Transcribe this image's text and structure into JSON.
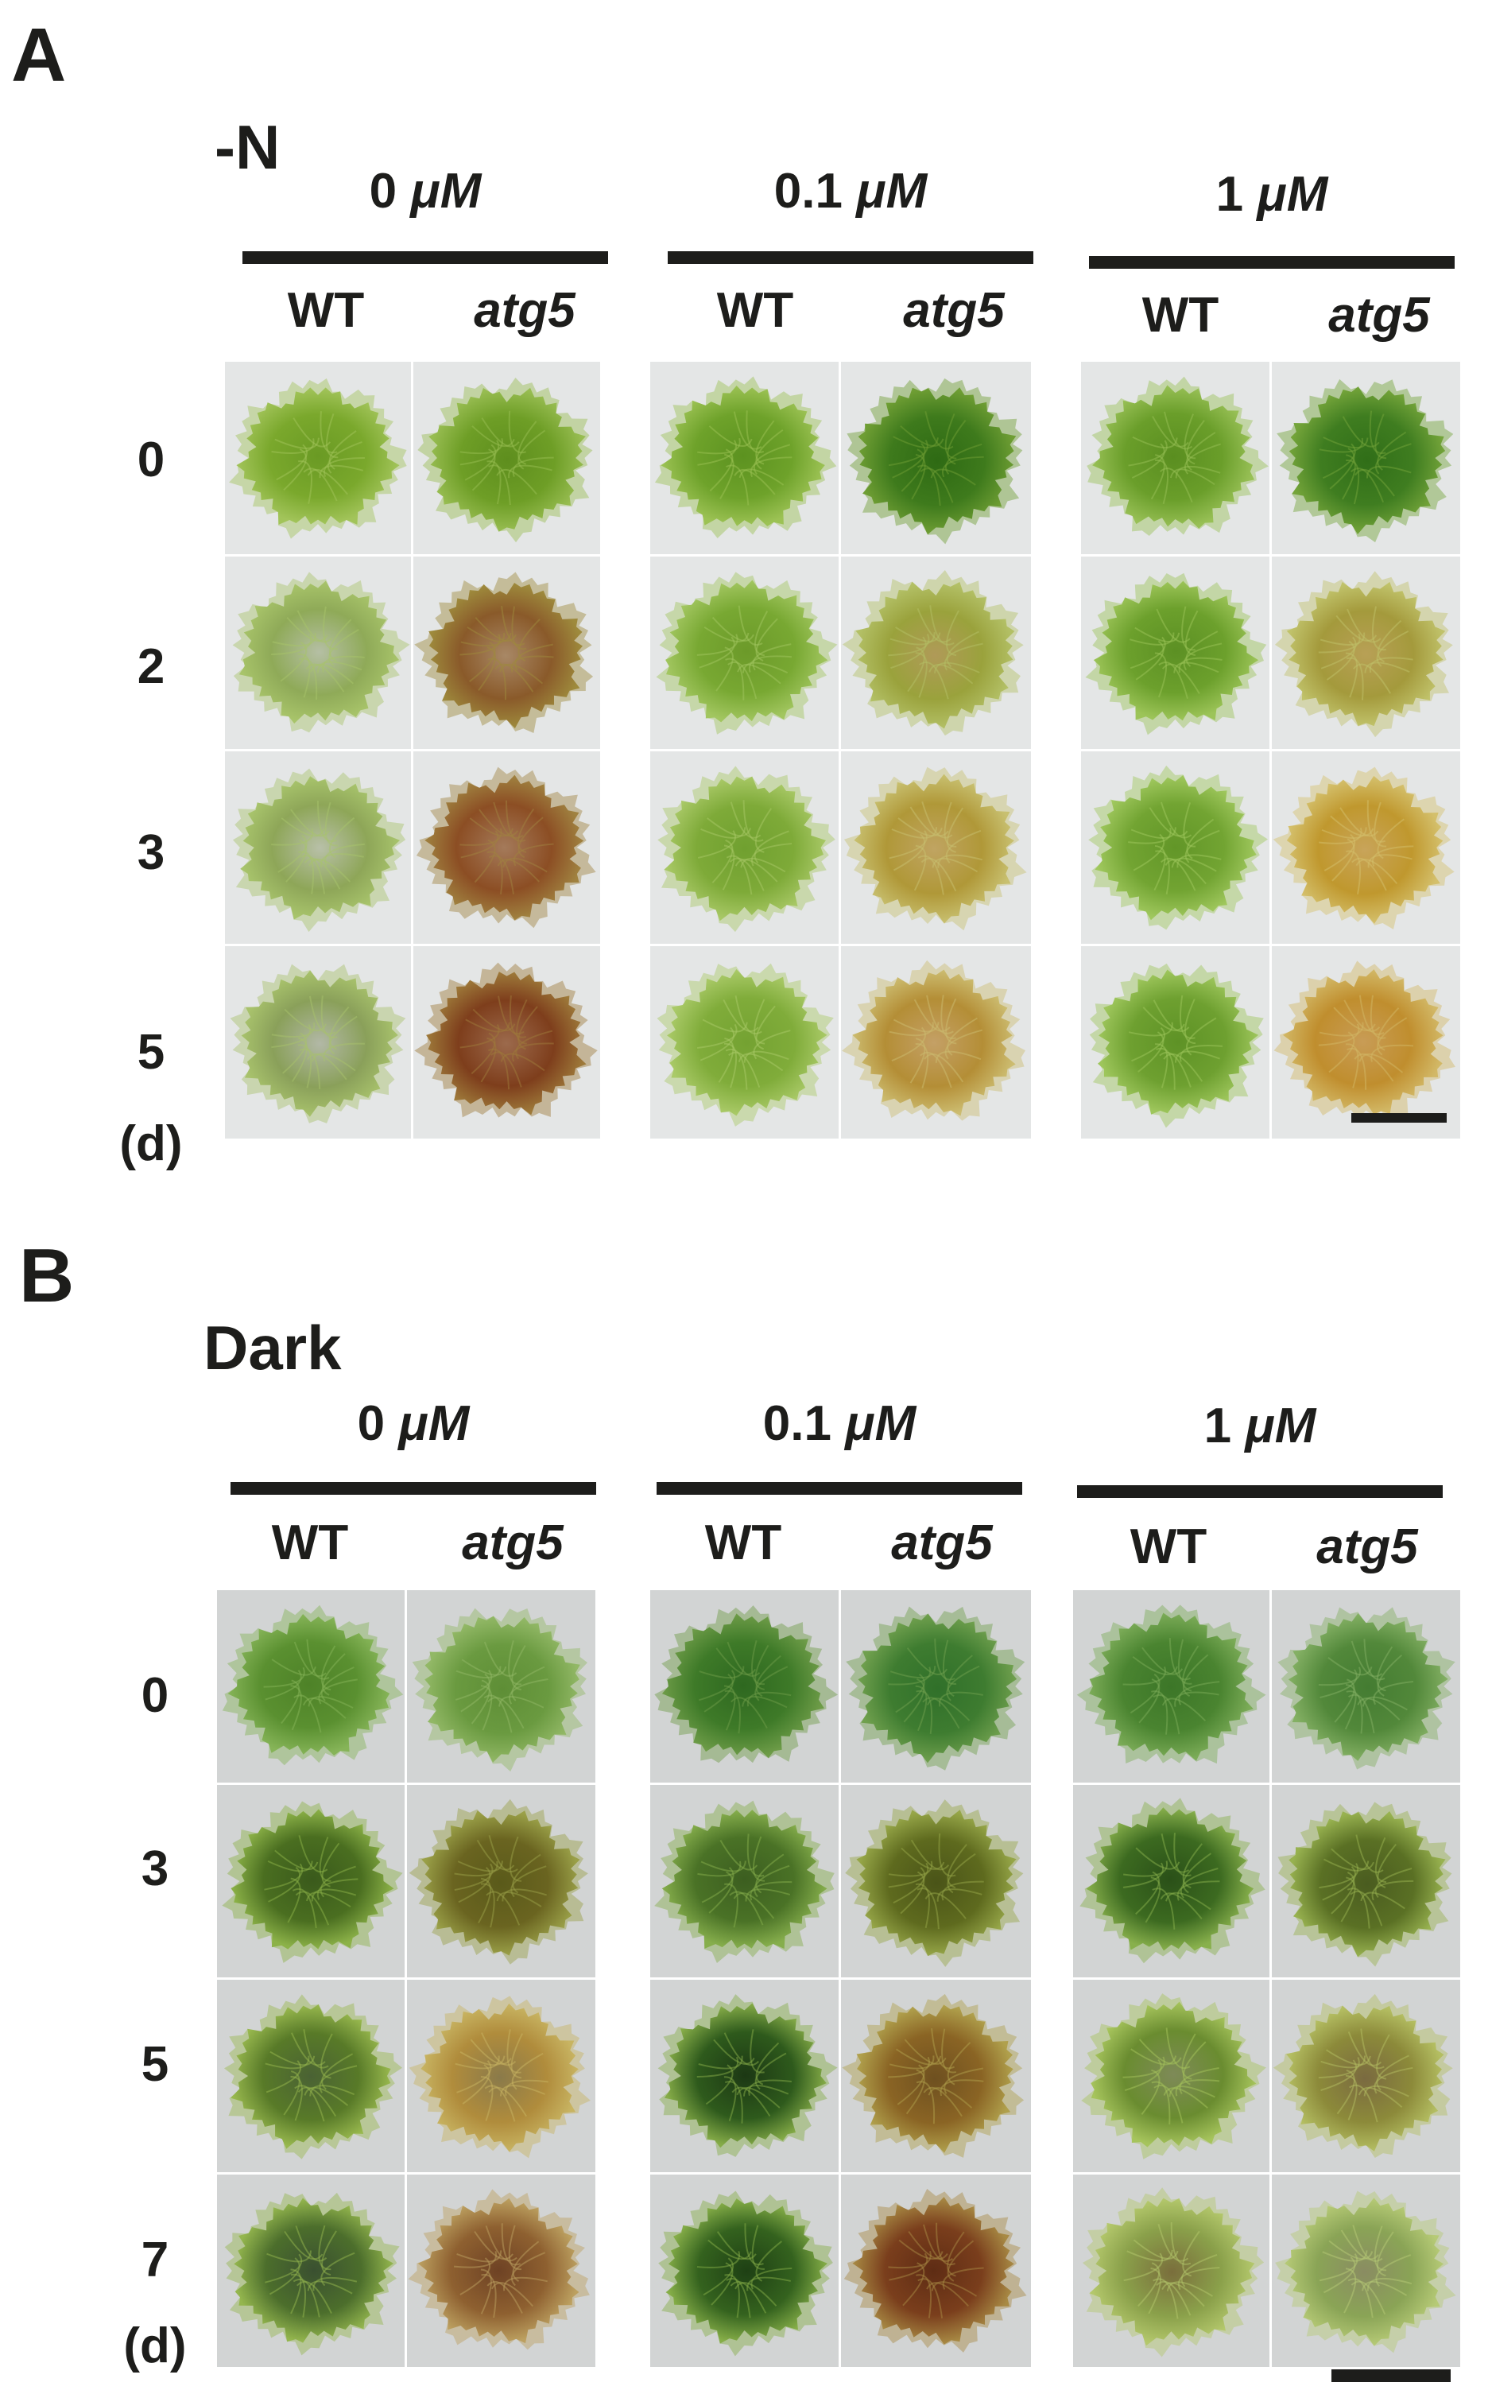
{
  "panels": [
    {
      "letter": "A",
      "condition": "-N",
      "concentrations": [
        {
          "value": "0 ",
          "unit": "μM"
        },
        {
          "value": "0.1 ",
          "unit": "μM"
        },
        {
          "value": "1 ",
          "unit": "μM"
        }
      ],
      "genotypes": [
        {
          "label": "WT",
          "italic": false
        },
        {
          "label": "atg5",
          "italic": true
        }
      ],
      "rows": [
        "0",
        "2",
        "3",
        "5"
      ],
      "unit_label": "(d)",
      "background": "#e4e6e6",
      "cells": [
        [
          {
            "moss": "#7aa82c",
            "center": "#6a9a24",
            "edge": "#a2c45a"
          },
          {
            "moss": "#6e9e26",
            "center": "#5e8e1e",
            "edge": "#98bd52"
          },
          {
            "moss": "#6ea22a",
            "center": "#5c9220",
            "edge": "#9cc254"
          },
          {
            "moss": "#3e7a1c",
            "center": "#2e6a14",
            "edge": "#6f9e34"
          },
          {
            "moss": "#6a9e2a",
            "center": "#5a8e20",
            "edge": "#98c056"
          },
          {
            "moss": "#3f7d20",
            "center": "#306e18",
            "edge": "#74a43a"
          }
        ],
        [
          {
            "moss": "#8faa58",
            "center": "#b5bfa4",
            "edge": "#a8c46a"
          },
          {
            "moss": "#8a5a2a",
            "center": "#a88866",
            "edge": "#9e8a3c"
          },
          {
            "moss": "#78a832",
            "center": "#6c9a2a",
            "edge": "#a2c660"
          },
          {
            "moss": "#9aa23c",
            "center": "#b09a58",
            "edge": "#b3c066"
          },
          {
            "moss": "#6ca02c",
            "center": "#5c9024",
            "edge": "#9cc458"
          },
          {
            "moss": "#a49a3c",
            "center": "#b8a056",
            "edge": "#c0c26a"
          }
        ],
        [
          {
            "moss": "#8ea658",
            "center": "#b8c0a8",
            "edge": "#a8c46c"
          },
          {
            "moss": "#8c4e24",
            "center": "#a47a5a",
            "edge": "#a08240"
          },
          {
            "moss": "#7eaa38",
            "center": "#70a030",
            "edge": "#a8c866"
          },
          {
            "moss": "#b09838",
            "center": "#c0a462",
            "edge": "#c8c070"
          },
          {
            "moss": "#72a432",
            "center": "#629628",
            "edge": "#a0c85e"
          },
          {
            "moss": "#c0982e",
            "center": "#c8a45a",
            "edge": "#d4c06c"
          }
        ],
        [
          {
            "moss": "#8aa05a",
            "center": "#b2b8a6",
            "edge": "#a8c26c"
          },
          {
            "moss": "#7e3e1c",
            "center": "#9c6a4c",
            "edge": "#9e7a3a"
          },
          {
            "moss": "#80ac3a",
            "center": "#74a232",
            "edge": "#aaca68"
          },
          {
            "moss": "#b48e36",
            "center": "#c4a066",
            "edge": "#ccbc70"
          },
          {
            "moss": "#6ea030",
            "center": "#5e9226",
            "edge": "#9ec65c"
          },
          {
            "moss": "#c08e2e",
            "center": "#c89c56",
            "edge": "#d2b866"
          }
        ]
      ]
    },
    {
      "letter": "B",
      "condition": "Dark",
      "concentrations": [
        {
          "value": "0 ",
          "unit": "μM"
        },
        {
          "value": "0.1 ",
          "unit": "μM"
        },
        {
          "value": "1 ",
          "unit": "μM"
        }
      ],
      "genotypes": [
        {
          "label": "WT",
          "italic": false
        },
        {
          "label": "atg5",
          "italic": true
        }
      ],
      "rows": [
        "0",
        "3",
        "5",
        "7"
      ],
      "unit_label": "(d)",
      "background": "#d2d4d4",
      "cells": [
        [
          {
            "moss": "#5a9030",
            "center": "#4e8228",
            "edge": "#86b458"
          },
          {
            "moss": "#6a9a40",
            "center": "#5e8e36",
            "edge": "#92b866"
          },
          {
            "moss": "#3e7a28",
            "center": "#2e6820",
            "edge": "#6e9c48"
          },
          {
            "moss": "#3e7c30",
            "center": "#30702a",
            "edge": "#70a04e"
          },
          {
            "moss": "#4a8430",
            "center": "#3c7628",
            "edge": "#7cac58"
          },
          {
            "moss": "#52883a",
            "center": "#447c32",
            "edge": "#84b064"
          }
        ],
        [
          {
            "moss": "#4a6e20",
            "center": "#3a5a1c",
            "edge": "#8cb248"
          },
          {
            "moss": "#6a6420",
            "center": "#5a5a1a",
            "edge": "#9aa048"
          },
          {
            "moss": "#4a7226",
            "center": "#3c5e20",
            "edge": "#86ae4c"
          },
          {
            "moss": "#5e6a1e",
            "center": "#4a5418",
            "edge": "#96a648"
          },
          {
            "moss": "#3c6a20",
            "center": "#2a5018",
            "edge": "#88b04c"
          },
          {
            "moss": "#5a7024",
            "center": "#4a5c20",
            "edge": "#98b250"
          }
        ],
        [
          {
            "moss": "#587a28",
            "center": "#4a6234",
            "edge": "#98b84e"
          },
          {
            "moss": "#b08c3c",
            "center": "#8a7a4a",
            "edge": "#c8b462"
          },
          {
            "moss": "#2e5a1c",
            "center": "#1c3814",
            "edge": "#86ac48"
          },
          {
            "moss": "#8a6424",
            "center": "#6e5020",
            "edge": "#b0a04c"
          },
          {
            "moss": "#6a8c30",
            "center": "#7e8a58",
            "edge": "#a6c45c"
          },
          {
            "moss": "#8c8a3a",
            "center": "#7a6a40",
            "edge": "#b4be62"
          }
        ],
        [
          {
            "moss": "#4c6e2c",
            "center": "#3a5030",
            "edge": "#94b64e"
          },
          {
            "moss": "#8e6030",
            "center": "#6e4224",
            "edge": "#bca060"
          },
          {
            "moss": "#34621e",
            "center": "#1e4014",
            "edge": "#86ae48"
          },
          {
            "moss": "#7a3e1c",
            "center": "#5e2c14",
            "edge": "#a88a44"
          },
          {
            "moss": "#8aa04a",
            "center": "#7a6e3c",
            "edge": "#b4c86c"
          },
          {
            "moss": "#8aa456",
            "center": "#8a8c62",
            "edge": "#b6ca76"
          }
        ]
      ]
    }
  ]
}
